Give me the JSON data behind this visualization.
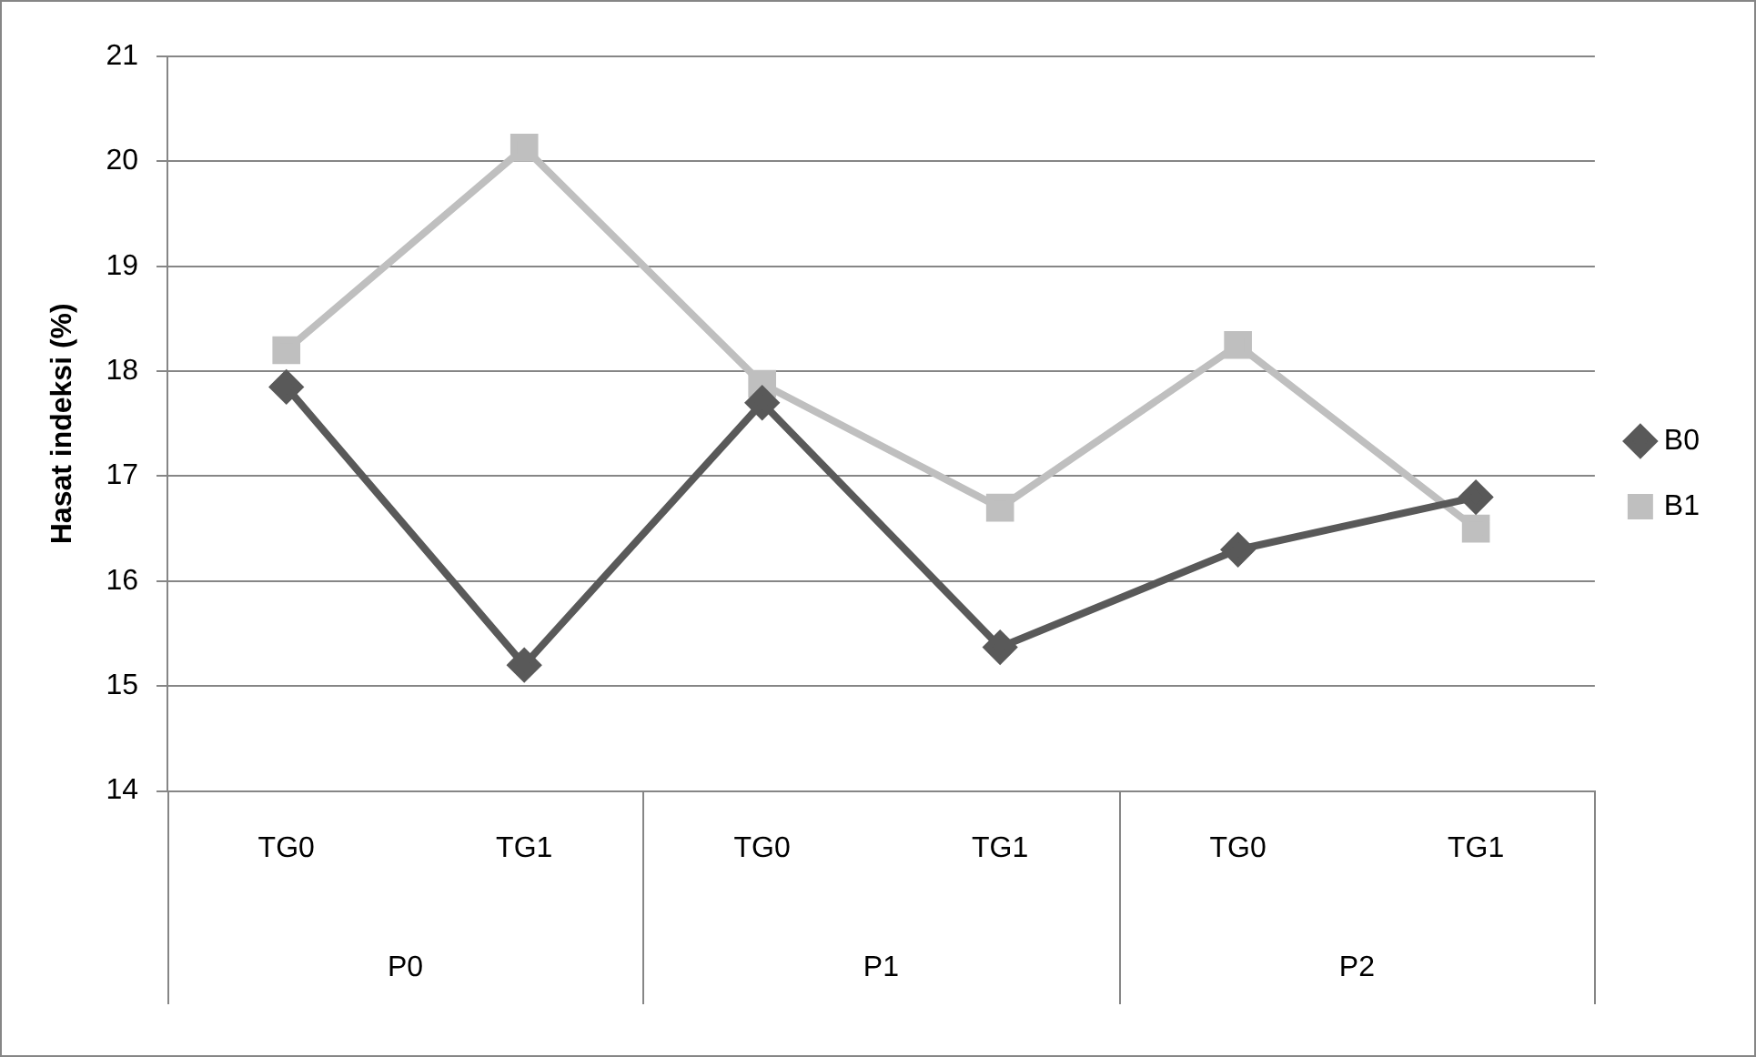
{
  "chart_data": {
    "type": "line",
    "ylabel": "Hasat indeksi (%)",
    "categories": [
      "TG0",
      "TG1",
      "TG0",
      "TG1",
      "TG0",
      "TG1"
    ],
    "annotations": [
      "P0",
      "P1",
      "P2"
    ],
    "series": [
      {
        "name": "B0",
        "color": "#595959",
        "marker": "diamond",
        "values": [
          17.85,
          15.2,
          17.7,
          15.37,
          16.3,
          16.8
        ]
      },
      {
        "name": "B1",
        "color": "#bfbfbf",
        "marker": "square",
        "values": [
          18.2,
          20.13,
          17.88,
          16.7,
          18.25,
          16.5
        ]
      }
    ],
    "ylim": [
      14,
      21
    ],
    "yticks": [
      14,
      15,
      16,
      17,
      18,
      19,
      20,
      21
    ],
    "grid": "y",
    "legend": "right"
  }
}
